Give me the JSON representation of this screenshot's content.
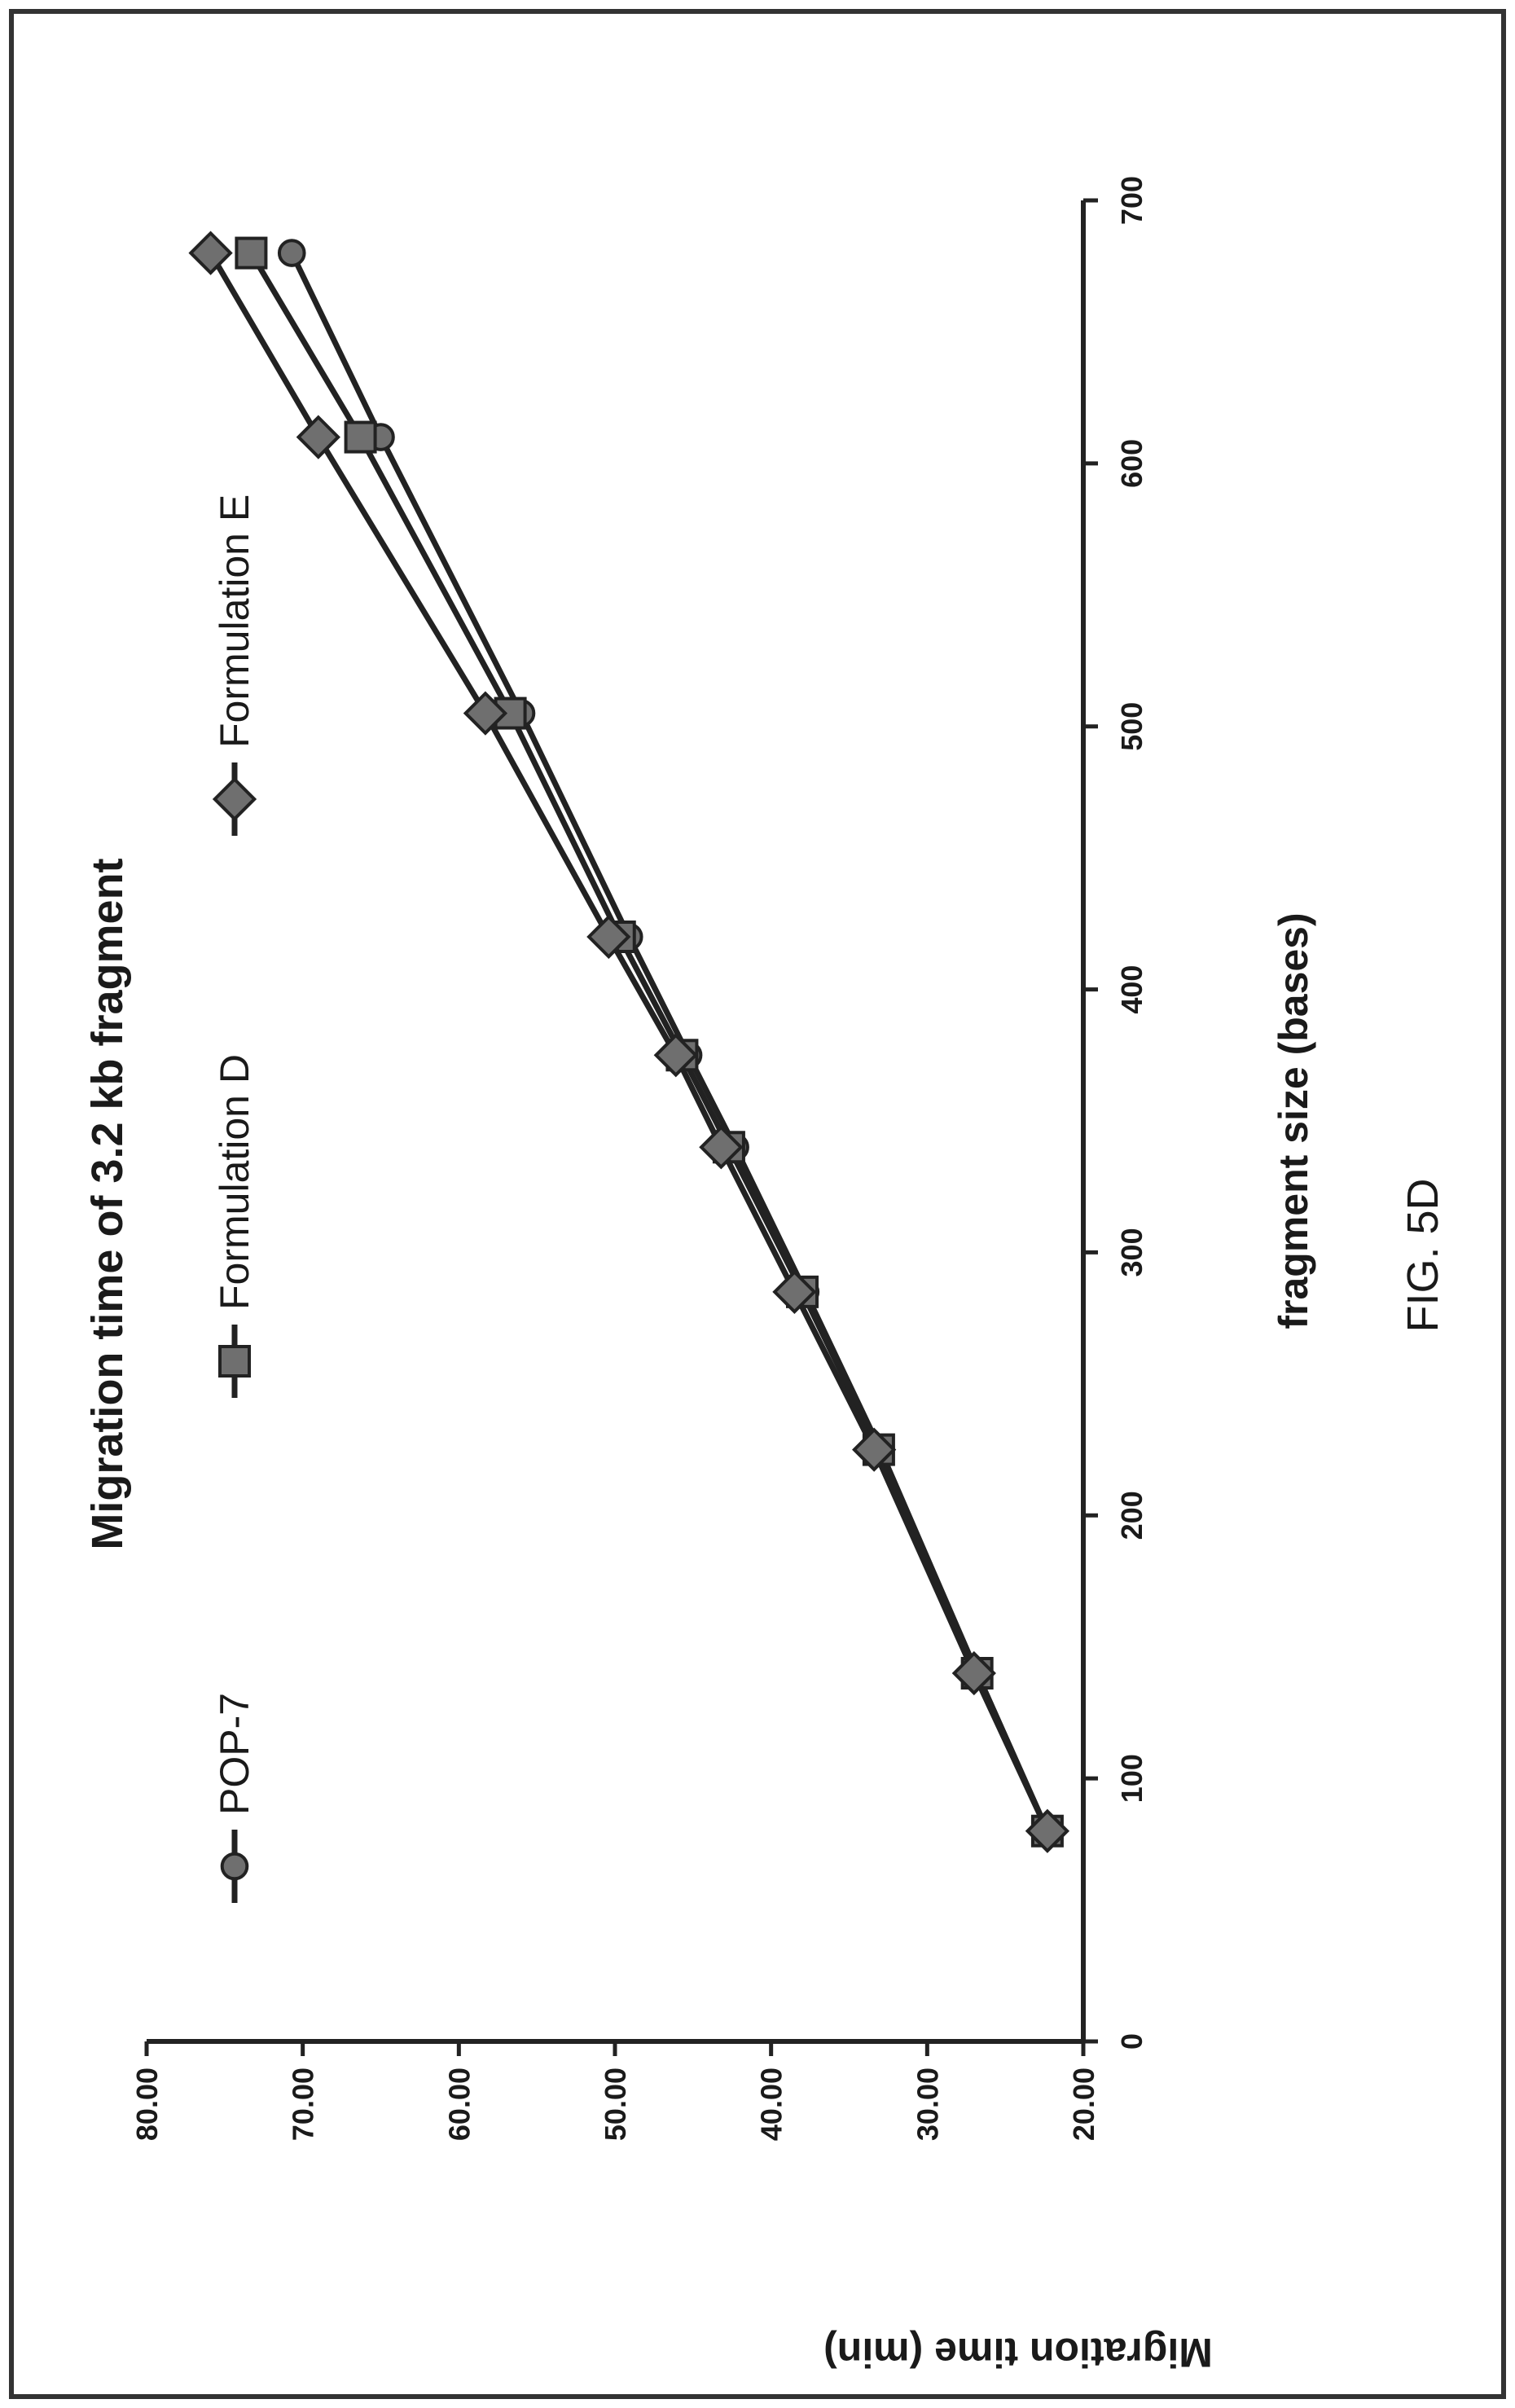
{
  "figure_label": "FIG. 5D",
  "chart_data": {
    "type": "line",
    "title": "Migration time of 3.2 kb fragment",
    "xlabel": "fragment size (bases)",
    "ylabel": "Migration time (min)",
    "xlim": [
      0,
      700
    ],
    "ylim": [
      20,
      80
    ],
    "x_ticks": [
      0,
      100,
      200,
      300,
      400,
      500,
      600,
      700
    ],
    "y_ticks": [
      20,
      30,
      40,
      50,
      60,
      70,
      80
    ],
    "x_tick_labels": [
      "0",
      "100",
      "200",
      "300",
      "400",
      "500",
      "600",
      "700"
    ],
    "y_tick_labels": [
      "20.00",
      "30.00",
      "40.00",
      "50.00",
      "60.00",
      "70.00",
      "80.00"
    ],
    "grid": false,
    "legend_position": "top",
    "series": [
      {
        "name": "POP-7",
        "marker": "circle",
        "x": [
          80,
          140,
          225,
          285,
          340,
          375,
          420,
          505,
          610,
          680
        ],
        "y": [
          22.3,
          26.8,
          33.0,
          37.8,
          42.3,
          45.3,
          49.1,
          56.0,
          65.0,
          70.7
        ]
      },
      {
        "name": "Formulation D",
        "marker": "square",
        "x": [
          80,
          140,
          225,
          285,
          340,
          375,
          420,
          505,
          610,
          680
        ],
        "y": [
          22.3,
          26.8,
          33.1,
          38.0,
          42.7,
          45.7,
          49.7,
          56.7,
          66.3,
          73.3
        ]
      },
      {
        "name": "Formulation E",
        "marker": "diamond",
        "x": [
          80,
          140,
          225,
          285,
          340,
          375,
          420,
          505,
          610,
          680
        ],
        "y": [
          22.3,
          27.0,
          33.4,
          38.5,
          43.2,
          46.1,
          50.4,
          58.3,
          69.0,
          75.9
        ]
      }
    ]
  }
}
